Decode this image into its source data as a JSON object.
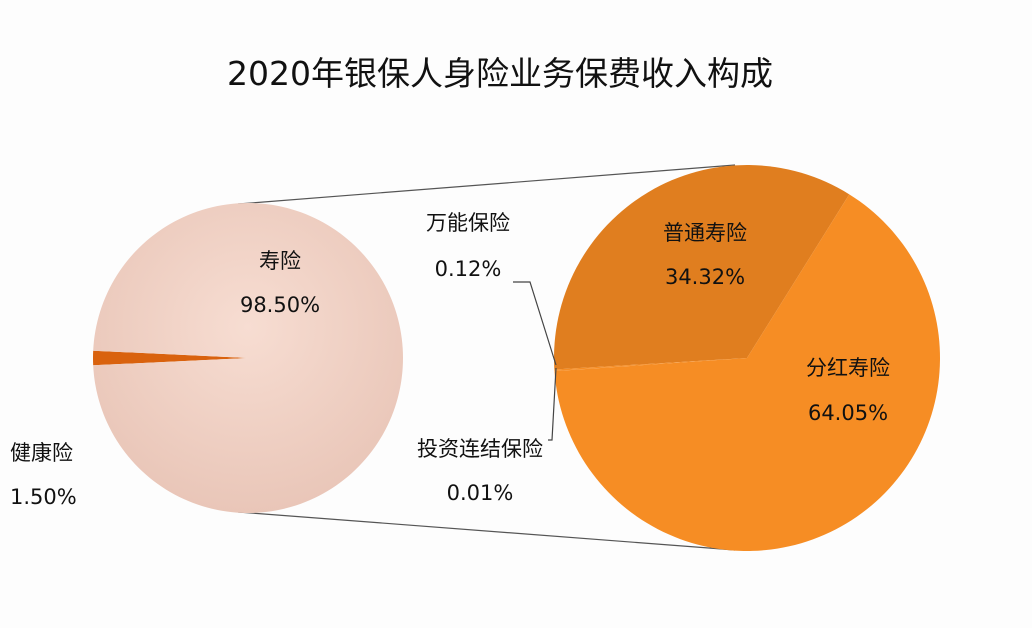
{
  "chart_data": {
    "type": "pie",
    "subtype": "pie-of-pie",
    "title": "2020年银保人身险业务保费收入构成",
    "main_pie": {
      "slices": [
        {
          "name": "寿险",
          "value": 98.5,
          "label": "98.50%",
          "color": "#efcfc2"
        },
        {
          "name": "健康险",
          "value": 1.5,
          "label": "1.50%",
          "color": "#d9620e"
        }
      ]
    },
    "secondary_pie": {
      "parent": "寿险",
      "slices": [
        {
          "name": "普通寿险",
          "value": 34.32,
          "label": "34.32%",
          "color": "#e07e1f"
        },
        {
          "name": "分红寿险",
          "value": 64.05,
          "label": "64.05%",
          "color": "#f68d24"
        },
        {
          "name": "投资连结保险",
          "value": 0.01,
          "label": "0.01%",
          "color": "#f68d24"
        },
        {
          "name": "万能保险",
          "value": 0.12,
          "label": "0.12%",
          "color": "#f68d24"
        }
      ]
    }
  }
}
